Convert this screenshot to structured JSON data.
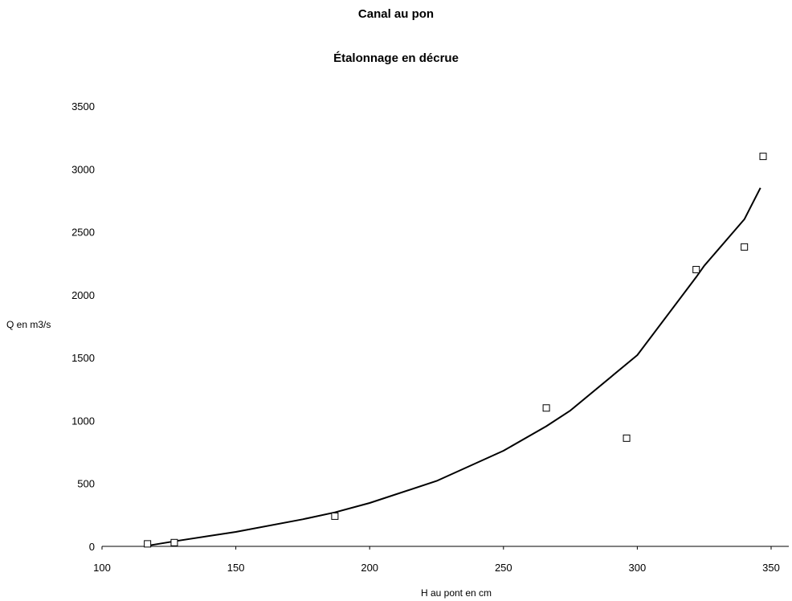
{
  "chart_data": {
    "type": "scatter",
    "title": "Canal au pon",
    "subtitle": "Étalonnage en décrue",
    "xlabel": "H au pont en cm",
    "ylabel": "Q en m3/s",
    "xlim": [
      100,
      350
    ],
    "ylim": [
      0,
      3500
    ],
    "xticks": [
      100,
      150,
      200,
      250,
      300,
      350
    ],
    "yticks": [
      0,
      500,
      1000,
      1500,
      2000,
      2500,
      3000,
      3500
    ],
    "grid": false,
    "legend": "none",
    "series": [
      {
        "type": "scatter",
        "marker": "hollow-square",
        "points": [
          {
            "x": 117,
            "y": 20
          },
          {
            "x": 127,
            "y": 30
          },
          {
            "x": 187,
            "y": 240
          },
          {
            "x": 266,
            "y": 1100
          },
          {
            "x": 296,
            "y": 860
          },
          {
            "x": 322,
            "y": 2200
          },
          {
            "x": 340,
            "y": 2380
          },
          {
            "x": 347,
            "y": 3100
          }
        ]
      },
      {
        "type": "line",
        "curve": "power fit",
        "points": [
          {
            "x": 117,
            "y": 5
          },
          {
            "x": 127,
            "y": 40
          },
          {
            "x": 150,
            "y": 115
          },
          {
            "x": 175,
            "y": 215
          },
          {
            "x": 187,
            "y": 270
          },
          {
            "x": 200,
            "y": 345
          },
          {
            "x": 225,
            "y": 520
          },
          {
            "x": 250,
            "y": 760
          },
          {
            "x": 266,
            "y": 955
          },
          {
            "x": 275,
            "y": 1080
          },
          {
            "x": 300,
            "y": 1520
          },
          {
            "x": 322,
            "y": 2140
          },
          {
            "x": 325,
            "y": 2230
          },
          {
            "x": 340,
            "y": 2600
          },
          {
            "x": 346,
            "y": 2850
          }
        ]
      }
    ]
  }
}
